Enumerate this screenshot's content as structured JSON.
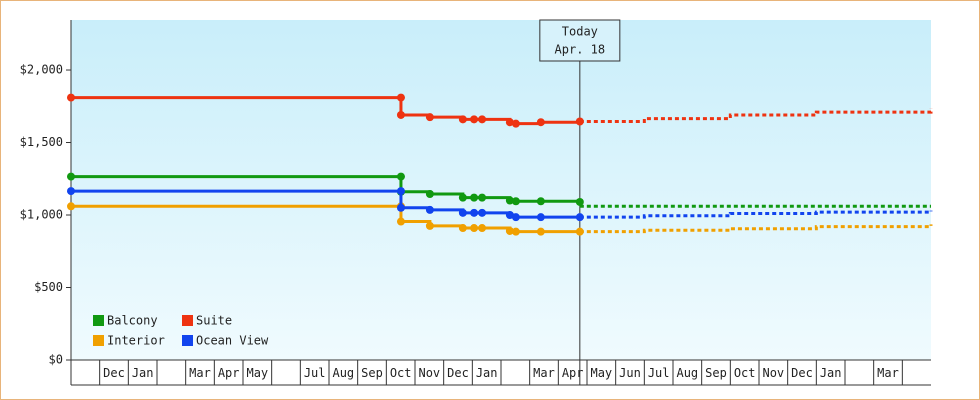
{
  "chart_data": {
    "type": "step-line",
    "categories": [
      null,
      "Dec",
      "Jan",
      null,
      "Mar",
      "Apr",
      "May",
      null,
      "Jul",
      "Aug",
      "Sep",
      "Oct",
      "Nov",
      "Dec",
      "Jan",
      null,
      "Mar",
      "Apr",
      "May",
      "Jun",
      "Jul",
      "Aug",
      "Sep",
      "Oct",
      "Nov",
      "Dec",
      "Jan",
      null,
      "Mar",
      null
    ],
    "xlim": [
      0,
      30
    ],
    "x": [
      0,
      11.51,
      11.51,
      12.52,
      13.67,
      14.06,
      14.34,
      15.31,
      15.52,
      16.39,
      17.75
    ],
    "forecast_x": [
      17.75,
      20,
      23,
      26,
      30
    ],
    "series": [
      {
        "name": "Balcony",
        "color": "#119911",
        "values": [
          1265,
          1265,
          1160,
          1145,
          1120,
          1120,
          1120,
          1100,
          1095,
          1095,
          1090
        ],
        "forecast_values": [
          1060,
          1060,
          1060,
          1060,
          1060
        ]
      },
      {
        "name": "Suite",
        "color": "#ee3311",
        "values": [
          1810,
          1810,
          1690,
          1675,
          1660,
          1660,
          1660,
          1640,
          1630,
          1640,
          1645
        ],
        "forecast_values": [
          1645,
          1665,
          1690,
          1710,
          1735
        ]
      },
      {
        "name": "Interior",
        "color": "#f0a000",
        "values": [
          1060,
          1060,
          955,
          925,
          910,
          910,
          910,
          890,
          885,
          885,
          885
        ],
        "forecast_values": [
          885,
          895,
          905,
          920,
          935
        ]
      },
      {
        "name": "Ocean View",
        "color": "#1144ee",
        "values": [
          1165,
          1165,
          1050,
          1035,
          1015,
          1015,
          1015,
          1000,
          985,
          985,
          985
        ],
        "forecast_values": [
          985,
          995,
          1010,
          1020,
          1030
        ]
      }
    ],
    "ylim": [
      0,
      2345
    ],
    "yticks": [
      {
        "value": 0,
        "label": "$0"
      },
      {
        "value": 500,
        "label": "$500"
      },
      {
        "value": 1000,
        "label": "$1,000"
      },
      {
        "value": 1500,
        "label": "$1,500"
      },
      {
        "value": 2000,
        "label": "$2,000"
      }
    ],
    "today": {
      "x": 17.75,
      "label": "Today",
      "date": "Apr. 18"
    },
    "legend": "lower-left"
  }
}
